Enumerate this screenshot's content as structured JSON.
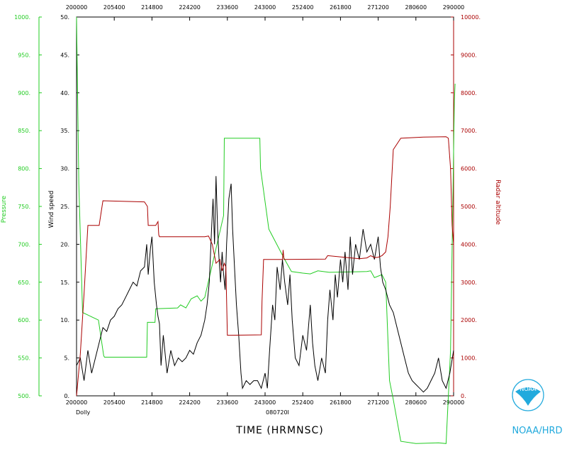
{
  "colors": {
    "pressure": "#22cc22",
    "wind": "#000000",
    "altitude": "#aa0000",
    "axis": "#000000",
    "noaa": "#22aadd"
  },
  "footer": {
    "storm": "Dolly",
    "date_code": "080720I",
    "time_label": "TIME (HRMNSC)",
    "agency": "NOAA/HRD",
    "logo_text": "NOAA"
  },
  "chart_data": {
    "type": "line",
    "x_ticks": [
      "200000",
      "205400",
      "214800",
      "224200",
      "233600",
      "243000",
      "252400",
      "261800",
      "271200",
      "280600",
      "290000"
    ],
    "series": [
      {
        "name": "Pressure",
        "axis": "far-left",
        "ylim": [
          500,
          1000
        ],
        "ticks": [
          "500.",
          "550.",
          "600.",
          "650.",
          "700.",
          "750.",
          "800.",
          "850.",
          "900.",
          "950.",
          "1000."
        ],
        "points": [
          [
            0,
            1000
          ],
          [
            0.3,
            780
          ],
          [
            0.8,
            610
          ],
          [
            2.9,
            600
          ],
          [
            3.6,
            553
          ],
          [
            3.7,
            551
          ],
          [
            9.3,
            551
          ],
          [
            9.4,
            597
          ],
          [
            10.4,
            597
          ],
          [
            10.5,
            615
          ],
          [
            13.4,
            616
          ],
          [
            13.8,
            620
          ],
          [
            14.5,
            616
          ],
          [
            15.2,
            628
          ],
          [
            16.0,
            632
          ],
          [
            16.5,
            625
          ],
          [
            17.0,
            630
          ],
          [
            19.5,
            738
          ],
          [
            19.6,
            840
          ],
          [
            24.3,
            840
          ],
          [
            24.4,
            800
          ],
          [
            25.5,
            720
          ],
          [
            27.6,
            680
          ],
          [
            28.5,
            664
          ],
          [
            30.0,
            662
          ],
          [
            31.0,
            661
          ],
          [
            32.0,
            665
          ],
          [
            33.5,
            663
          ],
          [
            38.5,
            664
          ],
          [
            39.0,
            665
          ],
          [
            39.5,
            656
          ],
          [
            40.5,
            660
          ],
          [
            41.0,
            650
          ],
          [
            41.5,
            520
          ],
          [
            42.0,
            495
          ],
          [
            43.0,
            440
          ],
          [
            45.0,
            437
          ],
          [
            48.0,
            438
          ],
          [
            49.0,
            437
          ],
          [
            49.6,
            560
          ],
          [
            50.1,
            890
          ],
          [
            50.2,
            912
          ]
        ]
      },
      {
        "name": "Wind speed",
        "axis": "left",
        "ylim": [
          0,
          50
        ],
        "ticks": [
          "0.",
          "5.",
          "10.",
          "15.",
          "20.",
          "25.",
          "30.",
          "35.",
          "40.",
          "45.",
          "50."
        ],
        "points": [
          [
            0,
            4
          ],
          [
            0.5,
            5
          ],
          [
            1,
            2
          ],
          [
            1.5,
            6
          ],
          [
            2,
            3
          ],
          [
            2.5,
            5
          ],
          [
            3,
            7
          ],
          [
            3.5,
            9
          ],
          [
            4,
            8.5
          ],
          [
            4.5,
            10
          ],
          [
            5,
            10.5
          ],
          [
            5.5,
            11.5
          ],
          [
            6,
            12
          ],
          [
            6.5,
            13
          ],
          [
            7,
            14
          ],
          [
            7.5,
            15
          ],
          [
            8,
            14.5
          ],
          [
            8.5,
            16.5
          ],
          [
            9,
            17
          ],
          [
            9.3,
            20
          ],
          [
            9.5,
            16
          ],
          [
            9.8,
            19.5
          ],
          [
            10,
            21
          ],
          [
            10.3,
            15
          ],
          [
            10.6,
            12
          ],
          [
            10.8,
            10.5
          ],
          [
            11,
            9.5
          ],
          [
            11.2,
            4
          ],
          [
            11.5,
            8
          ],
          [
            12,
            3
          ],
          [
            12.5,
            6
          ],
          [
            13,
            4
          ],
          [
            13.5,
            5
          ],
          [
            14,
            4.5
          ],
          [
            14.5,
            5
          ],
          [
            15,
            6
          ],
          [
            15.5,
            5.5
          ],
          [
            16,
            7
          ],
          [
            16.5,
            8
          ],
          [
            17,
            10
          ],
          [
            17.3,
            12
          ],
          [
            17.6,
            15
          ],
          [
            17.9,
            22
          ],
          [
            18.1,
            26
          ],
          [
            18.3,
            20
          ],
          [
            18.5,
            29
          ],
          [
            18.7,
            22
          ],
          [
            18.9,
            18
          ],
          [
            19.1,
            15
          ],
          [
            19.3,
            19
          ],
          [
            19.5,
            16
          ],
          [
            19.7,
            14
          ],
          [
            19.9,
            20
          ],
          [
            20.2,
            26
          ],
          [
            20.5,
            28
          ],
          [
            20.7,
            22
          ],
          [
            21,
            16
          ],
          [
            21.2,
            12
          ],
          [
            21.5,
            8
          ],
          [
            21.8,
            3
          ],
          [
            22,
            1
          ],
          [
            22.5,
            2
          ],
          [
            23,
            1.5
          ],
          [
            23.5,
            2
          ],
          [
            24,
            2
          ],
          [
            24.5,
            1
          ],
          [
            25,
            3
          ],
          [
            25.3,
            1
          ],
          [
            25.6,
            6
          ],
          [
            26,
            12
          ],
          [
            26.3,
            10
          ],
          [
            26.6,
            17
          ],
          [
            27,
            14
          ],
          [
            27.3,
            18
          ],
          [
            27.6,
            15
          ],
          [
            28,
            12
          ],
          [
            28.3,
            16
          ],
          [
            28.6,
            10
          ],
          [
            29,
            5
          ],
          [
            29.5,
            4
          ],
          [
            30,
            8
          ],
          [
            30.5,
            6
          ],
          [
            31,
            12
          ],
          [
            31.3,
            7
          ],
          [
            31.6,
            4
          ],
          [
            32,
            2
          ],
          [
            32.5,
            5
          ],
          [
            33,
            3
          ],
          [
            33.3,
            10
          ],
          [
            33.6,
            14
          ],
          [
            34,
            10
          ],
          [
            34.3,
            16
          ],
          [
            34.6,
            13
          ],
          [
            35,
            18
          ],
          [
            35.3,
            15
          ],
          [
            35.6,
            19
          ],
          [
            36,
            14
          ],
          [
            36.3,
            21
          ],
          [
            36.6,
            16
          ],
          [
            37,
            20
          ],
          [
            37.5,
            18
          ],
          [
            38,
            22
          ],
          [
            38.5,
            19
          ],
          [
            39,
            20
          ],
          [
            39.5,
            18
          ],
          [
            40,
            21
          ],
          [
            40.3,
            17
          ],
          [
            40.6,
            15
          ],
          [
            41,
            14
          ],
          [
            41.5,
            12
          ],
          [
            42,
            11
          ],
          [
            42.5,
            9
          ],
          [
            43,
            7
          ],
          [
            43.5,
            5
          ],
          [
            44,
            3
          ],
          [
            44.5,
            2
          ],
          [
            45,
            1.5
          ],
          [
            45.5,
            1
          ],
          [
            46,
            0.5
          ],
          [
            46.5,
            1
          ],
          [
            47,
            2
          ],
          [
            47.5,
            3
          ],
          [
            48,
            5
          ],
          [
            48.5,
            2
          ],
          [
            49,
            1
          ],
          [
            49.5,
            3
          ],
          [
            50,
            6
          ]
        ]
      },
      {
        "name": "Radar altitude",
        "axis": "right",
        "ylim": [
          0,
          10000
        ],
        "ticks": [
          "0.",
          "1000.",
          "2000.",
          "3000.",
          "4000.",
          "5000.",
          "6000.",
          "7000.",
          "8000.",
          "9000.",
          "10000."
        ],
        "points": [
          [
            0,
            0
          ],
          [
            0.5,
            1100
          ],
          [
            1.0,
            2700
          ],
          [
            1.5,
            4500
          ],
          [
            3.0,
            4500
          ],
          [
            3.5,
            5150
          ],
          [
            9.0,
            5120
          ],
          [
            9.4,
            5000
          ],
          [
            9.5,
            4500
          ],
          [
            10.5,
            4500
          ],
          [
            10.8,
            4600
          ],
          [
            10.9,
            4250
          ],
          [
            11.0,
            4200
          ],
          [
            17.0,
            4200
          ],
          [
            17.5,
            4220
          ],
          [
            18.0,
            4000
          ],
          [
            18.5,
            3500
          ],
          [
            19.0,
            3600
          ],
          [
            19.3,
            3300
          ],
          [
            19.6,
            3500
          ],
          [
            19.8,
            3400
          ],
          [
            20.0,
            1600
          ],
          [
            20.3,
            1600
          ],
          [
            24.5,
            1610
          ],
          [
            24.6,
            2500
          ],
          [
            24.8,
            3600
          ],
          [
            27.3,
            3600
          ],
          [
            27.4,
            3850
          ],
          [
            27.5,
            3600
          ],
          [
            33.0,
            3610
          ],
          [
            33.3,
            3700
          ],
          [
            37.5,
            3620
          ],
          [
            38.5,
            3640
          ],
          [
            39.0,
            3700
          ],
          [
            39.5,
            3650
          ],
          [
            40.0,
            3660
          ],
          [
            40.5,
            3700
          ],
          [
            41.0,
            3800
          ],
          [
            41.3,
            4200
          ],
          [
            41.6,
            5000
          ],
          [
            42.0,
            6500
          ],
          [
            43.0,
            6800
          ],
          [
            46.0,
            6830
          ],
          [
            49.0,
            6840
          ],
          [
            49.3,
            6800
          ],
          [
            49.6,
            6000
          ],
          [
            49.8,
            4500
          ],
          [
            50.0,
            4000
          ]
        ]
      }
    ]
  }
}
